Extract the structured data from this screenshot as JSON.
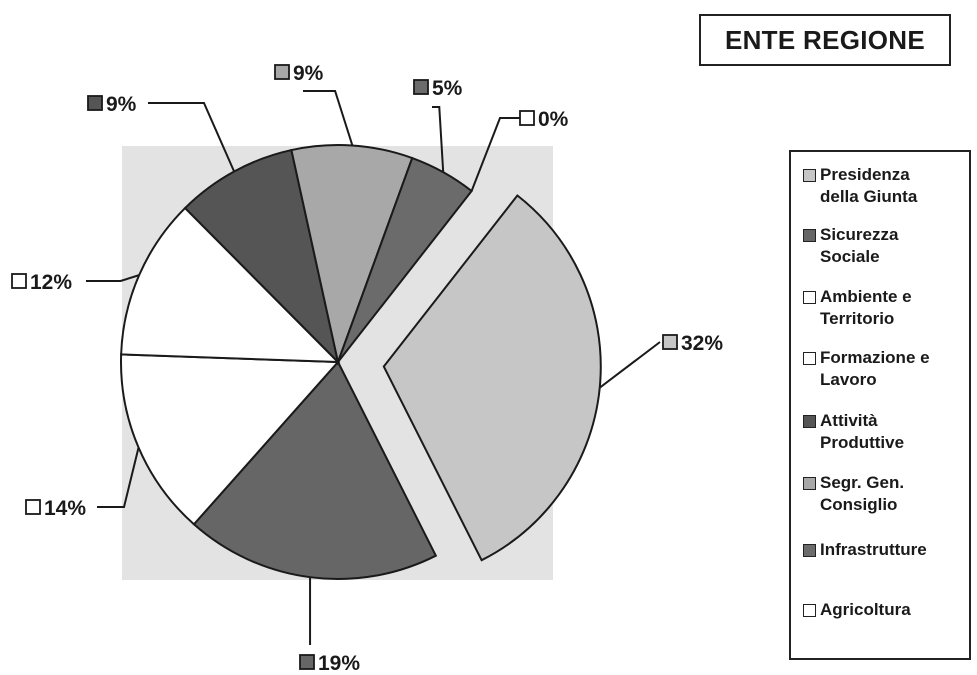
{
  "title": "ENTE REGIONE",
  "chart_data": {
    "type": "pie",
    "title": "ENTE REGIONE",
    "legend_position": "right",
    "exploded_slice": "Presidenza della Giunta",
    "slices": [
      {
        "name": "Presidenza della Giunta",
        "label": "32%",
        "value": 32,
        "color": "#c6c6c6"
      },
      {
        "name": "Sicurezza Sociale",
        "label": "19%",
        "value": 19,
        "color": "#666666"
      },
      {
        "name": "Ambiente e Territorio",
        "label": "14%",
        "value": 14,
        "color": "#ffffff"
      },
      {
        "name": "Formazione e Lavoro",
        "label": "12%",
        "value": 12,
        "color": "#ffffff"
      },
      {
        "name": "Attività Produttive",
        "label": "9%",
        "value": 9,
        "color": "#555555"
      },
      {
        "name": "Segr. Gen. Consiglio",
        "label": "9%",
        "value": 9,
        "color": "#a8a8a8"
      },
      {
        "name": "Infrastrutture",
        "label": "5%",
        "value": 5,
        "color": "#6b6b6b"
      },
      {
        "name": "Agricoltura",
        "label": "0%",
        "value": 0,
        "color": "#ffffff"
      }
    ]
  },
  "legend": {
    "items": [
      {
        "text": "Presidenza\ndella Giunta",
        "color": "#c6c6c6"
      },
      {
        "text": "Sicurezza\nSociale",
        "color": "#666666"
      },
      {
        "text": "Ambiente e\nTerritorio",
        "color": "#ffffff"
      },
      {
        "text": "Formazione e\nLavoro",
        "color": "#ffffff"
      },
      {
        "text": "Attività\nProduttive",
        "color": "#555555"
      },
      {
        "text": "Segr. Gen.\nConsiglio",
        "color": "#a8a8a8"
      },
      {
        "text": "Infrastrutture",
        "color": "#6b6b6b"
      },
      {
        "text": "Agricoltura",
        "color": "#ffffff"
      }
    ]
  }
}
